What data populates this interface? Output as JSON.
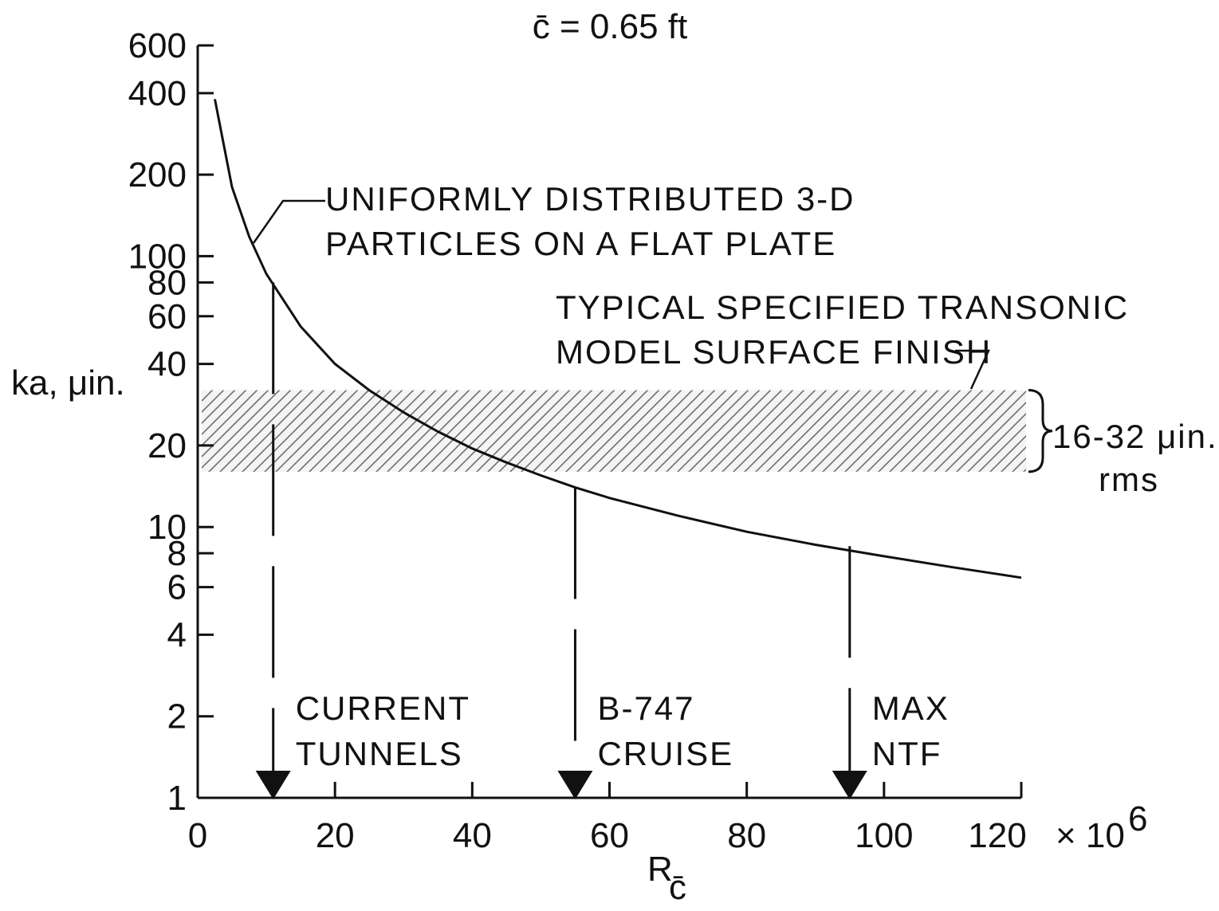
{
  "chart_data": {
    "type": "line",
    "title": "c̄ = 0.65 ft",
    "xlabel": "R",
    "xlabel_subscript": "c̄",
    "ylabel": "ka, μin.",
    "x_scale_label": "× 10",
    "x_scale_exponent": "6",
    "xlim": [
      0,
      120
    ],
    "ylim": [
      1,
      600
    ],
    "y_scale": "log",
    "x_ticks": [
      0,
      20,
      40,
      60,
      80,
      100,
      120
    ],
    "x_tick_labels": [
      "0",
      "20",
      "40",
      "60",
      "80",
      "100",
      "120"
    ],
    "y_ticks": [
      1,
      2,
      4,
      6,
      8,
      10,
      20,
      40,
      60,
      80,
      100,
      200,
      400,
      600
    ],
    "y_tick_labels": [
      "1",
      "2",
      "4",
      "6",
      "8",
      "10",
      "20",
      "40",
      "60",
      "80",
      "100",
      "200",
      "400",
      "600"
    ],
    "grid": false,
    "series": [
      {
        "x": [
          2.5,
          5,
          7.5,
          10,
          15,
          20,
          25,
          30,
          35,
          40,
          45,
          50,
          55,
          60,
          70,
          80,
          90,
          100,
          110,
          120
        ],
        "y": [
          380,
          180,
          118,
          86,
          55,
          40,
          32,
          26.5,
          22.5,
          19.5,
          17.3,
          15.5,
          14,
          12.8,
          11,
          9.6,
          8.6,
          7.8,
          7.1,
          6.5
        ]
      }
    ],
    "band": {
      "y_min": 16,
      "y_max": 32,
      "label_lines": [
        "16-32 μin.",
        "rms"
      ]
    },
    "band_label": {
      "lines": [
        "TYPICAL SPECIFIED TRANSONIC",
        "MODEL SURFACE FINISH"
      ]
    },
    "curve_label": {
      "lines": [
        "UNIFORMLY DISTRIBUTED 3-D",
        "PARTICLES ON A FLAT PLATE"
      ]
    },
    "markers": [
      {
        "x": 11,
        "y": 80,
        "lines": [
          "CURRENT",
          "TUNNELS"
        ]
      },
      {
        "x": 55,
        "y": 14,
        "lines": [
          "B-747",
          "CRUISE"
        ]
      },
      {
        "x": 95,
        "y": 8.5,
        "lines": [
          "MAX",
          "NTF"
        ]
      }
    ]
  }
}
